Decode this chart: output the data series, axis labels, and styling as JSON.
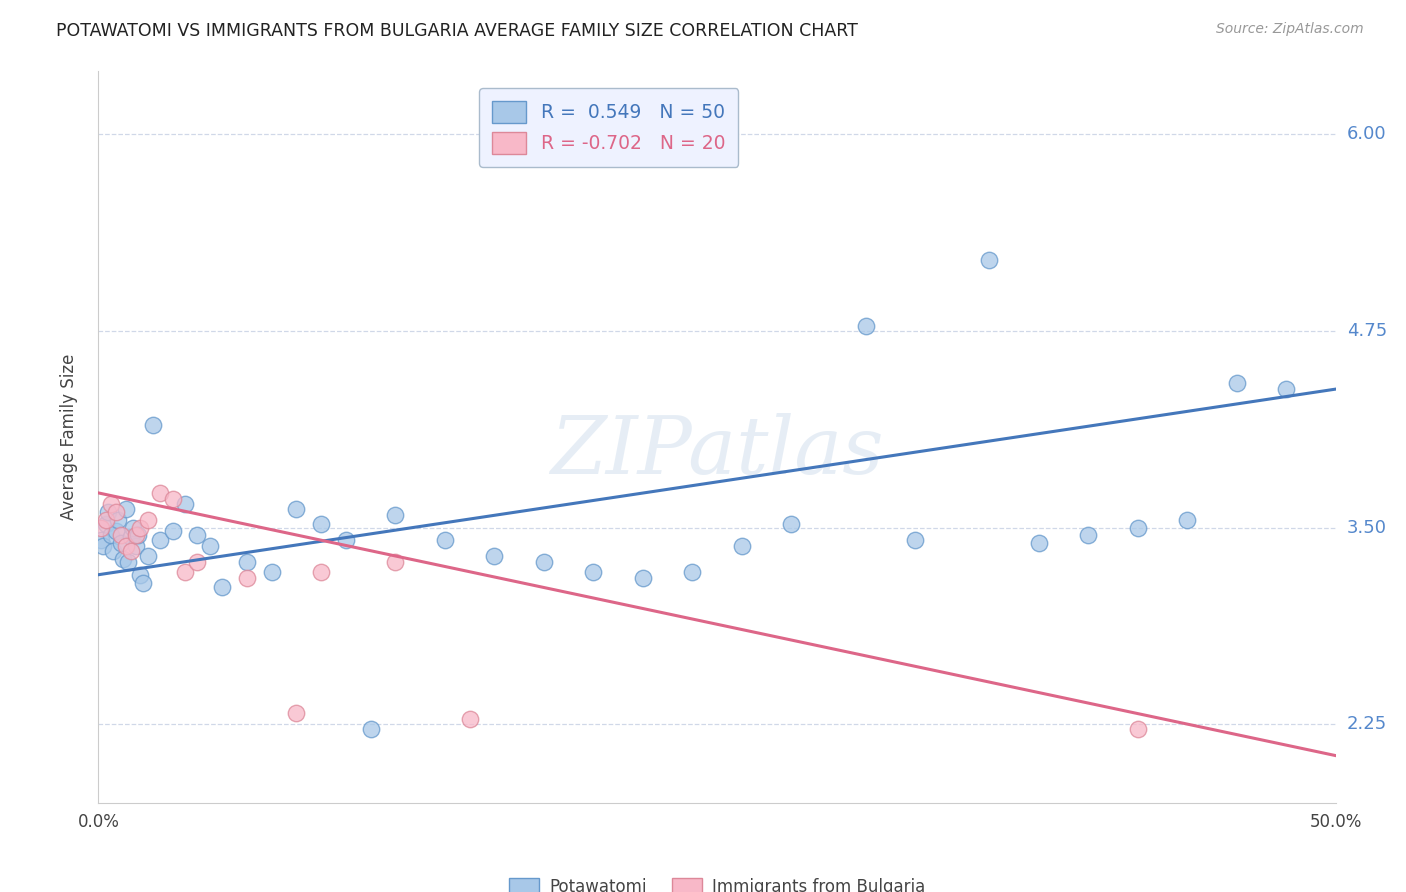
{
  "title": "POTAWATOMI VS IMMIGRANTS FROM BULGARIA AVERAGE FAMILY SIZE CORRELATION CHART",
  "source": "Source: ZipAtlas.com",
  "ylabel": "Average Family Size",
  "yticks": [
    2.25,
    3.5,
    4.75,
    6.0
  ],
  "ytick_labels": [
    "2.25",
    "3.50",
    "4.75",
    "6.00"
  ],
  "ylim": [
    1.75,
    6.4
  ],
  "xlim": [
    0.0,
    0.5
  ],
  "xtick_positions": [
    0.0,
    0.5
  ],
  "xtick_labels": [
    "0.0%",
    "50.0%"
  ],
  "watermark": "ZIPatlas",
  "blue_r": 0.549,
  "blue_n": 50,
  "pink_r": -0.702,
  "pink_n": 20,
  "blue_scatter_x": [
    0.001,
    0.002,
    0.003,
    0.004,
    0.005,
    0.006,
    0.007,
    0.008,
    0.009,
    0.01,
    0.011,
    0.012,
    0.013,
    0.014,
    0.015,
    0.016,
    0.017,
    0.018,
    0.02,
    0.022,
    0.025,
    0.03,
    0.035,
    0.04,
    0.045,
    0.05,
    0.06,
    0.07,
    0.08,
    0.09,
    0.1,
    0.11,
    0.12,
    0.14,
    0.16,
    0.18,
    0.2,
    0.22,
    0.24,
    0.26,
    0.28,
    0.31,
    0.33,
    0.36,
    0.38,
    0.4,
    0.42,
    0.44,
    0.46,
    0.48
  ],
  "blue_scatter_y": [
    3.42,
    3.38,
    3.52,
    3.6,
    3.45,
    3.35,
    3.48,
    3.55,
    3.4,
    3.3,
    3.62,
    3.28,
    3.44,
    3.5,
    3.38,
    3.45,
    3.2,
    3.15,
    3.32,
    4.15,
    3.42,
    3.48,
    3.65,
    3.45,
    3.38,
    3.12,
    3.28,
    3.22,
    3.62,
    3.52,
    3.42,
    2.22,
    3.58,
    3.42,
    3.32,
    3.28,
    3.22,
    3.18,
    3.22,
    3.38,
    3.52,
    4.78,
    3.42,
    5.2,
    3.4,
    3.45,
    3.5,
    3.55,
    4.42,
    4.38
  ],
  "pink_scatter_x": [
    0.001,
    0.003,
    0.005,
    0.007,
    0.009,
    0.011,
    0.013,
    0.015,
    0.017,
    0.02,
    0.025,
    0.03,
    0.035,
    0.04,
    0.06,
    0.08,
    0.09,
    0.12,
    0.15,
    0.42
  ],
  "pink_scatter_y": [
    3.5,
    3.55,
    3.65,
    3.6,
    3.45,
    3.38,
    3.35,
    3.45,
    3.5,
    3.55,
    3.72,
    3.68,
    3.22,
    3.28,
    3.18,
    2.32,
    3.22,
    3.28,
    2.28,
    2.22
  ],
  "blue_line_x": [
    0.0,
    0.5
  ],
  "blue_line_y": [
    3.2,
    4.38
  ],
  "pink_line_x": [
    0.0,
    0.5
  ],
  "pink_line_y": [
    3.72,
    2.05
  ],
  "blue_color": "#a8c8e8",
  "blue_edge_color": "#6699cc",
  "blue_line_color": "#4477bb",
  "pink_color": "#f8b8c8",
  "pink_edge_color": "#dd8899",
  "pink_line_color": "#dd6688",
  "legend_bg": "#eef2ff",
  "legend_edge": "#aabbcc",
  "axis_color": "#5588cc",
  "grid_color": "#d0d8e8",
  "title_color": "#222222",
  "source_color": "#999999"
}
